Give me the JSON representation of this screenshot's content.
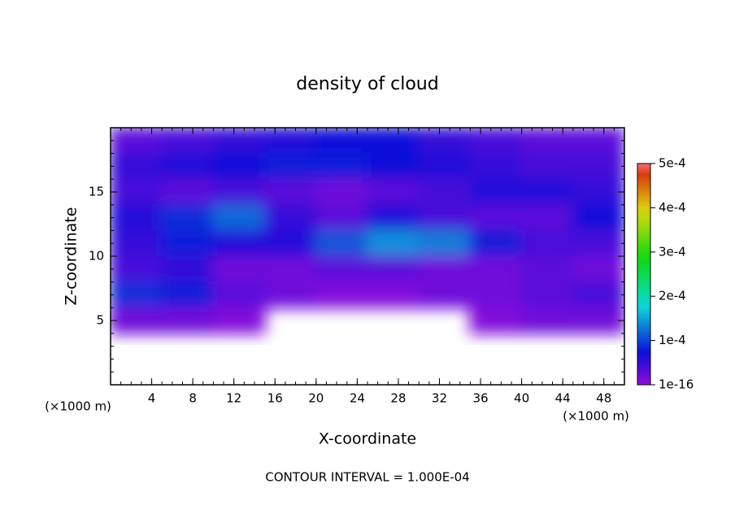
{
  "chart_data": {
    "type": "contour",
    "title": "density of cloud",
    "x_label": "X-coordinate",
    "y_label": "Z-coordinate",
    "x_unit": "(×1000 m)",
    "y_unit": "(×1000 m)",
    "footer": "CONTOUR INTERVAL = 1.000E-04",
    "xlim": [
      0,
      50
    ],
    "ylim": [
      0,
      20
    ],
    "xticks": [
      4,
      8,
      12,
      16,
      20,
      24,
      28,
      32,
      36,
      40,
      44,
      48
    ],
    "yticks": [
      5,
      10,
      15
    ],
    "x": [
      2.5,
      7.5,
      12.5,
      17.5,
      22.5,
      27.5,
      32.5,
      37.5,
      42.5,
      47.5
    ],
    "y": [
      19,
      17,
      15,
      13,
      11,
      9,
      7,
      5,
      3,
      1
    ],
    "z": [
      [
        3e-05,
        4e-05,
        5e-05,
        6e-05,
        7e-05,
        7e-05,
        5e-05,
        4e-05,
        3e-05,
        3e-05
      ],
      [
        5e-05,
        6e-05,
        7e-05,
        8e-05,
        8e-05,
        7e-05,
        6e-05,
        5e-05,
        4e-05,
        4e-05
      ],
      [
        4e-05,
        3e-05,
        4e-05,
        3e-05,
        2e-05,
        3e-05,
        4e-05,
        6e-05,
        6e-05,
        5e-05
      ],
      [
        6e-05,
        9e-05,
        0.00012,
        5e-05,
        3e-05,
        6e-05,
        4e-05,
        3e-05,
        3e-05,
        7e-05
      ],
      [
        5e-05,
        8e-05,
        6e-05,
        6e-05,
        0.00011,
        0.00014,
        0.00013,
        8e-05,
        4e-05,
        4e-05
      ],
      [
        4e-05,
        5e-05,
        2e-05,
        2e-05,
        3e-05,
        3e-05,
        2e-05,
        2e-05,
        3e-05,
        2e-05
      ],
      [
        9e-05,
        8e-05,
        3e-05,
        2e-05,
        1e-05,
        1e-05,
        2e-05,
        2e-05,
        3e-05,
        4e-05
      ],
      [
        2e-05,
        2e-05,
        1e-05,
        null,
        null,
        null,
        null,
        1e-05,
        2e-05,
        2e-05
      ],
      [
        null,
        null,
        null,
        null,
        null,
        null,
        null,
        null,
        null,
        null
      ],
      [
        null,
        null,
        null,
        null,
        null,
        null,
        null,
        null,
        null,
        null
      ]
    ],
    "colorbar_lim": [
      0,
      0.0005
    ],
    "colorbar_ticks": [
      {
        "value": 1e-16,
        "label": "1e-16"
      },
      {
        "value": 0.0001,
        "label": "1e-4"
      },
      {
        "value": 0.0002,
        "label": "2e-4"
      },
      {
        "value": 0.0003,
        "label": "3e-4"
      },
      {
        "value": 0.0004,
        "label": "4e-4"
      },
      {
        "value": 0.0005,
        "label": "5e-4"
      }
    ]
  }
}
